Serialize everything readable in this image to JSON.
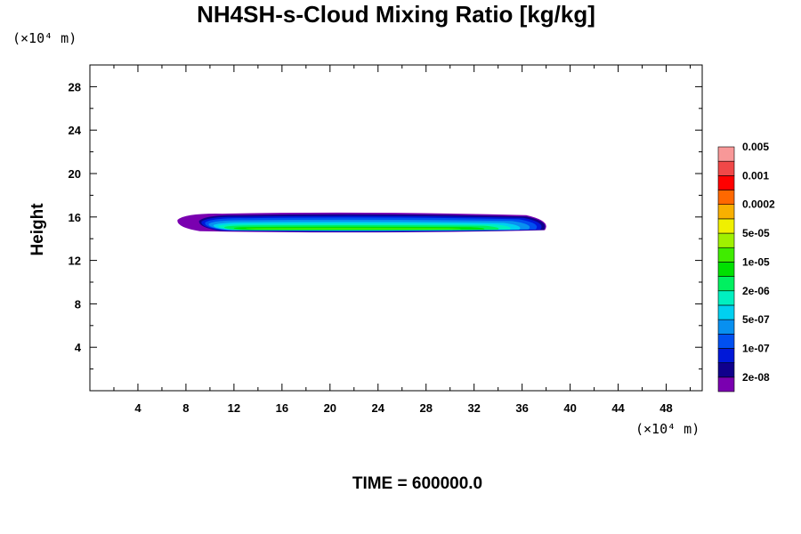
{
  "chart_data": {
    "type": "heatmap",
    "title": "NH4SH-s-Cloud Mixing Ratio [kg/kg]",
    "ylabel": "Height",
    "xlabel": "",
    "x_unit": "(×10⁴ m)",
    "y_unit": "(×10⁴ m)",
    "xlim": [
      0,
      51
    ],
    "ylim": [
      0,
      30
    ],
    "x_ticks": [
      4,
      8,
      12,
      16,
      20,
      24,
      28,
      32,
      36,
      40,
      44,
      48
    ],
    "y_ticks": [
      4,
      8,
      12,
      16,
      20,
      24,
      28
    ],
    "x_minor_step": 2,
    "y_minor_step": 2,
    "grid": false,
    "legend_placement": "right",
    "colorbar": {
      "colors": [
        "#7a00b0",
        "#10008c",
        "#0018d8",
        "#0050f0",
        "#0890f0",
        "#00d0f0",
        "#00f0c0",
        "#00f060",
        "#00e000",
        "#40ec00",
        "#a0f000",
        "#f0f000",
        "#f8b000",
        "#ff6800",
        "#ff0000",
        "#f04848",
        "#f89898"
      ],
      "labels": [
        "2e-08",
        "1e-07",
        "5e-07",
        "2e-06",
        "1e-05",
        "5e-05",
        "0.0002",
        "0.001",
        "0.005"
      ]
    },
    "cloud_layer": {
      "x_start": 7.3,
      "x_end": 38.2,
      "base_height": 14.5,
      "top_height": 16.4,
      "levels": [
        {
          "color_index": 0,
          "x": [
            7.3,
            38.2
          ],
          "y": [
            14.5,
            16.4
          ]
        },
        {
          "color_index": 1,
          "x": [
            9.1,
            38.1
          ],
          "y": [
            14.55,
            16.25
          ]
        },
        {
          "color_index": 2,
          "x": [
            9.3,
            37.8
          ],
          "y": [
            14.6,
            16.1
          ]
        },
        {
          "color_index": 3,
          "x": [
            9.6,
            37.4
          ],
          "y": [
            14.65,
            15.95
          ]
        },
        {
          "color_index": 4,
          "x": [
            9.9,
            36.8
          ],
          "y": [
            14.7,
            15.75
          ]
        },
        {
          "color_index": 5,
          "x": [
            10.3,
            36.0
          ],
          "y": [
            14.7,
            15.55
          ]
        },
        {
          "color_index": 6,
          "x": [
            10.7,
            35.2
          ],
          "y": [
            14.75,
            15.4
          ]
        },
        {
          "color_index": 7,
          "x": [
            11.2,
            34.2
          ],
          "y": [
            14.75,
            15.25
          ]
        },
        {
          "color_index": 8,
          "x": [
            12.0,
            33.0
          ],
          "y": [
            14.8,
            15.1
          ]
        },
        {
          "color_index": 9,
          "x": [
            13.0,
            31.0
          ],
          "y": [
            14.85,
            15.0
          ]
        }
      ]
    },
    "time_label": "TIME = 600000.0"
  }
}
